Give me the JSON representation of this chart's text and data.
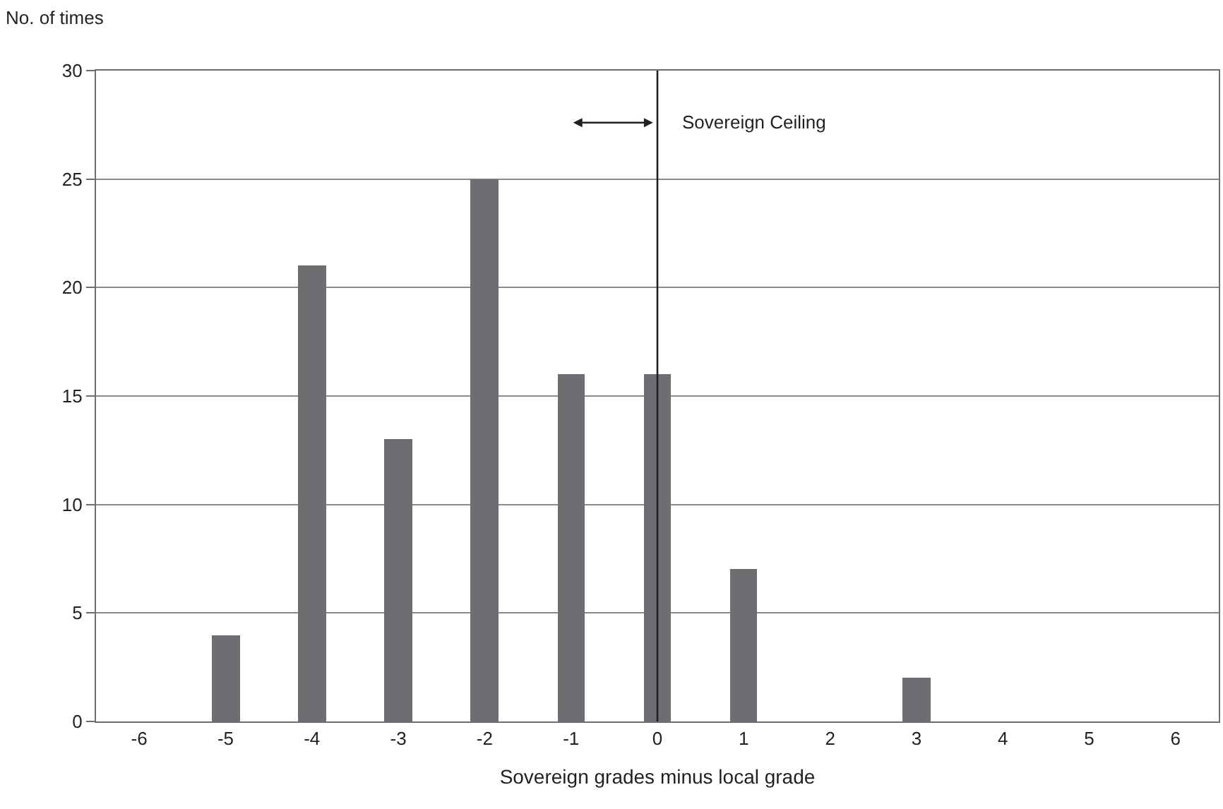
{
  "chart_data": {
    "type": "bar",
    "xlabel": "Sovereign grades minus local grade",
    "ylabel": "No. of times",
    "categories": [
      "-6",
      "-5",
      "-4",
      "-3",
      "-2",
      "-1",
      "0",
      "1",
      "2",
      "3",
      "4",
      "5",
      "6"
    ],
    "values": [
      0,
      4,
      21,
      13,
      25,
      16,
      16,
      7,
      0,
      2,
      0,
      0,
      0
    ],
    "color": "#6d6e71",
    "ylim": [
      0,
      30
    ],
    "yticks": [
      0,
      5,
      10,
      15,
      20,
      25,
      30
    ],
    "grid": "y",
    "legend": false,
    "ref_lines": [
      {
        "axis": "x",
        "value": "0",
        "label": "Sovereign Ceiling",
        "color": "#231f20"
      }
    ]
  }
}
